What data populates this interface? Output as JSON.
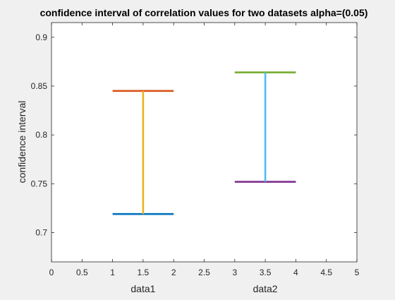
{
  "chart_data": {
    "type": "line",
    "title": "confidence interval of correlation values for two datasets alpha=(0.05)",
    "xlabel": "",
    "ylabel": "confidence interval",
    "xlim": [
      0,
      5
    ],
    "ylim": [
      0.67,
      0.915
    ],
    "x_ticks": [
      0,
      0.5,
      1,
      1.5,
      2,
      2.5,
      3,
      3.5,
      4,
      4.5,
      5
    ],
    "x_tick_labels": [
      "0",
      "0.5",
      "1",
      "1.5",
      "2",
      "2.5",
      "3",
      "3.5",
      "4",
      "4.5",
      "5"
    ],
    "y_ticks": [
      0.7,
      0.75,
      0.8,
      0.85,
      0.9
    ],
    "y_tick_labels": [
      "0.7",
      "0.75",
      "0.8",
      "0.85",
      "0.9"
    ],
    "category_labels": [
      {
        "x": 1.5,
        "label": "data1"
      },
      {
        "x": 3.5,
        "label": "data2"
      }
    ],
    "grid": false,
    "series": [
      {
        "x": [
          1,
          2
        ],
        "y": [
          0.719,
          0.719
        ],
        "color": "#0072bd"
      },
      {
        "x": [
          1,
          2
        ],
        "y": [
          0.845,
          0.845
        ],
        "color": "#d95319"
      },
      {
        "x": [
          1.5,
          1.5
        ],
        "y": [
          0.719,
          0.845
        ],
        "color": "#edb120"
      },
      {
        "x": [
          3,
          4
        ],
        "y": [
          0.752,
          0.752
        ],
        "color": "#7e2f8e"
      },
      {
        "x": [
          3,
          4
        ],
        "y": [
          0.864,
          0.864
        ],
        "color": "#77ac30"
      },
      {
        "x": [
          3.5,
          3.5
        ],
        "y": [
          0.752,
          0.864
        ],
        "color": "#4dbeee"
      }
    ]
  }
}
